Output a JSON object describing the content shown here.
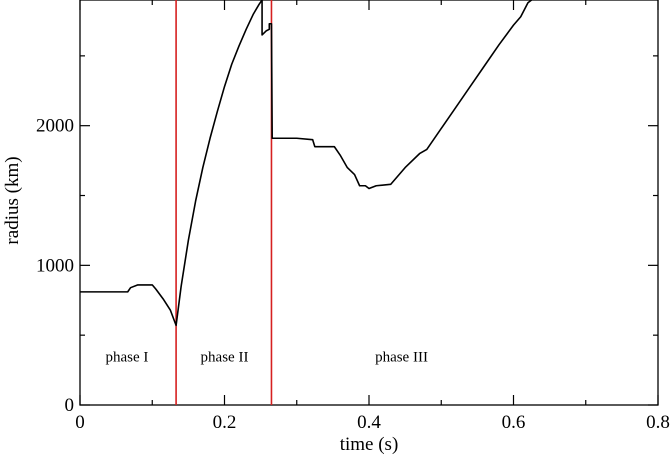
{
  "chart_data": {
    "type": "line",
    "title": "",
    "xlabel": "time (s)",
    "ylabel": "radius (km)",
    "xlim": [
      0,
      0.8
    ],
    "ylim": [
      0,
      2900
    ],
    "x_ticks": [
      "0",
      "0.2",
      "0.4",
      "0.6",
      "0.8"
    ],
    "y_ticks": [
      "0",
      "1000",
      "2000"
    ],
    "grid": false,
    "legend": "none",
    "series": [
      {
        "color": "#000000",
        "points": [
          [
            0.0,
            810
          ],
          [
            0.04,
            810
          ],
          [
            0.066,
            810
          ],
          [
            0.07,
            840
          ],
          [
            0.08,
            860
          ],
          [
            0.1,
            860
          ],
          [
            0.105,
            830
          ],
          [
            0.115,
            760
          ],
          [
            0.125,
            680
          ],
          [
            0.133,
            570
          ],
          [
            0.14,
            850
          ],
          [
            0.15,
            1180
          ],
          [
            0.16,
            1460
          ],
          [
            0.17,
            1700
          ],
          [
            0.18,
            1910
          ],
          [
            0.19,
            2100
          ],
          [
            0.2,
            2280
          ],
          [
            0.21,
            2440
          ],
          [
            0.22,
            2570
          ],
          [
            0.23,
            2690
          ],
          [
            0.24,
            2800
          ],
          [
            0.248,
            2870
          ],
          [
            0.252,
            2900
          ],
          [
            0.252,
            2650
          ],
          [
            0.258,
            2680
          ],
          [
            0.262,
            2690
          ],
          [
            0.262,
            2730
          ],
          [
            0.265,
            2730
          ],
          [
            0.266,
            1910
          ],
          [
            0.3,
            1910
          ],
          [
            0.322,
            1900
          ],
          [
            0.325,
            1850
          ],
          [
            0.352,
            1850
          ],
          [
            0.36,
            1790
          ],
          [
            0.37,
            1700
          ],
          [
            0.38,
            1650
          ],
          [
            0.387,
            1570
          ],
          [
            0.395,
            1570
          ],
          [
            0.4,
            1550
          ],
          [
            0.41,
            1570
          ],
          [
            0.43,
            1580
          ],
          [
            0.45,
            1700
          ],
          [
            0.47,
            1800
          ],
          [
            0.48,
            1830
          ],
          [
            0.5,
            1980
          ],
          [
            0.52,
            2130
          ],
          [
            0.54,
            2280
          ],
          [
            0.56,
            2430
          ],
          [
            0.58,
            2580
          ],
          [
            0.6,
            2720
          ],
          [
            0.61,
            2780
          ],
          [
            0.62,
            2880
          ],
          [
            0.625,
            2900
          ]
        ]
      }
    ],
    "vertical_markers": [
      {
        "x": 0.133,
        "color": "#d62020"
      },
      {
        "x": 0.265,
        "color": "#d62020"
      }
    ],
    "annotations": [
      {
        "text": "phase I",
        "x": 0.065,
        "y": 310
      },
      {
        "text": "phase II",
        "x": 0.2,
        "y": 310
      },
      {
        "text": "phase III",
        "x": 0.445,
        "y": 310
      }
    ]
  }
}
